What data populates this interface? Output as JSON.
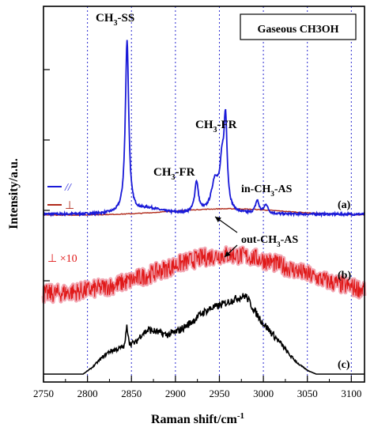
{
  "chart_data": {
    "type": "line",
    "title": "Gaseous CH3OH",
    "xlabel": "Raman shift/cm",
    "xlabel_sup": "-1",
    "ylabel": "Intensity/a.u.",
    "xlim": [
      2750,
      3115
    ],
    "xticks": [
      "2750",
      "2800",
      "2850",
      "2900",
      "2950",
      "3000",
      "3050",
      "3100"
    ],
    "grid": "vertical dotted at major x ticks",
    "colors": {
      "parallel": "#1a1ad8",
      "perp_a": "#b02a1a",
      "perp_b": "#e01818",
      "perp_b_fill": "#f2a8b4",
      "spectrum_c": "#000000",
      "grid": "#2a2ad0"
    },
    "legend": [
      {
        "symbol": "//",
        "series": "a_parallel"
      },
      {
        "symbol": "⊥",
        "series": "a_perpendicular"
      },
      {
        "symbol": "⊥ ×10",
        "series": "b_perpendicular_x10"
      }
    ],
    "panel_labels": [
      "(a)",
      "(b)",
      "(c)"
    ],
    "annotations": {
      "ch3_ss": {
        "pre": "CH",
        "sub": "3",
        "post": "-SS"
      },
      "ch3_fr_1": {
        "pre": "CH",
        "sub": "3",
        "post": "-FR"
      },
      "ch3_fr_2": {
        "pre": "CH",
        "sub": "3",
        "post": "-FR"
      },
      "in_ch3_as": {
        "pre": "in-CH",
        "sub": "3",
        "post": "-AS"
      },
      "out_ch3_as": {
        "pre": "out-CH",
        "sub": "3",
        "post": "-AS"
      }
    },
    "series": [
      {
        "key": "a_parallel",
        "name": "//",
        "baseline": 0,
        "peaks": [
          {
            "x": 2845,
            "height": 0.95,
            "width": 2.3
          },
          {
            "x": 2924,
            "height": 0.17,
            "width": 2.5
          },
          {
            "x": 2945,
            "height": 0.17,
            "width": 5
          },
          {
            "x": 2953,
            "height": 0.22,
            "width": 3
          },
          {
            "x": 2957,
            "height": 0.47,
            "width": 2.2
          },
          {
            "x": 2993,
            "height": 0.07,
            "width": 2.5
          },
          {
            "x": 3003,
            "height": 0.05,
            "width": 2.5
          },
          {
            "x": 2870,
            "height": 0.03,
            "width": 18
          }
        ]
      },
      {
        "key": "a_perpendicular",
        "name": "⊥",
        "baseline": 0,
        "broad": {
          "x": 2960,
          "height": 0.035,
          "width": 90
        }
      },
      {
        "key": "b_perpendicular_x10",
        "name": "⊥ ×10",
        "baseline": 0,
        "broad": {
          "x": 2960,
          "height": 0.22,
          "width": 110
        },
        "noise": 0.05
      },
      {
        "key": "c",
        "name": "",
        "baseline": 0,
        "segments": [
          [
            2795,
            0.0
          ],
          [
            2805,
            0.05
          ],
          [
            2815,
            0.12
          ],
          [
            2825,
            0.18
          ],
          [
            2835,
            0.2
          ],
          [
            2842,
            0.22
          ],
          [
            2845,
            0.38
          ],
          [
            2848,
            0.24
          ],
          [
            2855,
            0.25
          ],
          [
            2862,
            0.32
          ],
          [
            2870,
            0.35
          ],
          [
            2880,
            0.33
          ],
          [
            2890,
            0.31
          ],
          [
            2900,
            0.33
          ],
          [
            2910,
            0.37
          ],
          [
            2920,
            0.42
          ],
          [
            2930,
            0.48
          ],
          [
            2940,
            0.52
          ],
          [
            2950,
            0.54
          ],
          [
            2960,
            0.57
          ],
          [
            2970,
            0.6
          ],
          [
            2980,
            0.62
          ],
          [
            2990,
            0.5
          ],
          [
            3000,
            0.4
          ],
          [
            3010,
            0.32
          ],
          [
            3020,
            0.24
          ],
          [
            3030,
            0.15
          ],
          [
            3040,
            0.08
          ],
          [
            3050,
            0.03
          ],
          [
            3060,
            0.0
          ]
        ],
        "noise": 0.03
      }
    ]
  }
}
